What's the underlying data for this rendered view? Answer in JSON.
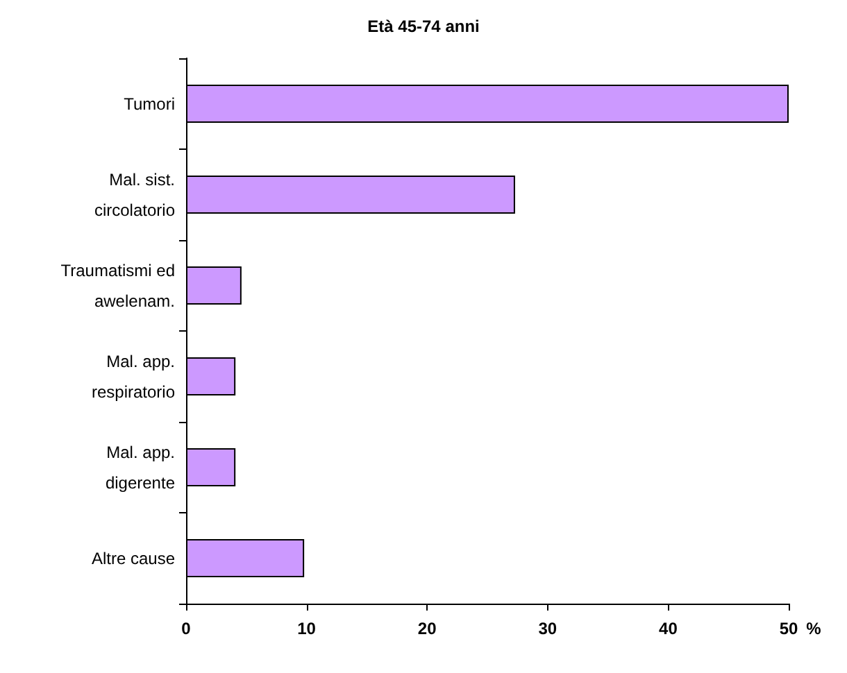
{
  "chart_data": {
    "type": "bar",
    "orientation": "horizontal",
    "title": "Età 45-74 anni",
    "xlabel": "%",
    "categories": [
      "Tumori",
      "Mal. sist.\ncircolatorio",
      "Traumatismi ed\nawelenam.",
      "Mal. app.\nrespiratorio",
      "Mal. app.\ndigerente",
      "Altre cause"
    ],
    "values": [
      50,
      27.3,
      4.6,
      4.1,
      4.1,
      9.8
    ],
    "color": "#cc99ff",
    "xlim": [
      0,
      50
    ],
    "xticks": [
      0,
      10,
      20,
      30,
      40,
      50
    ],
    "grid": false
  }
}
